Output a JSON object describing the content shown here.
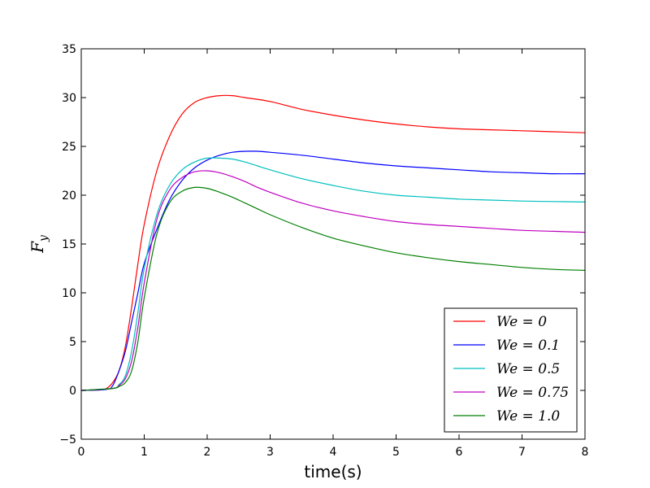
{
  "chart_data": {
    "type": "line",
    "title": "",
    "xlabel": "time(s)",
    "ylabel": "F_y",
    "ylabel_main": "F",
    "ylabel_sub": "y",
    "xlim": [
      0,
      8
    ],
    "ylim": [
      -5,
      35
    ],
    "xticks": [
      0,
      1,
      2,
      3,
      4,
      5,
      6,
      7,
      8
    ],
    "xtick_labels": [
      "0",
      "1",
      "2",
      "3",
      "4",
      "5",
      "6",
      "7",
      "8"
    ],
    "yticks": [
      -5,
      0,
      5,
      10,
      15,
      20,
      25,
      30,
      35
    ],
    "ytick_labels": [
      "−5",
      "0",
      "5",
      "10",
      "15",
      "20",
      "25",
      "30",
      "35"
    ],
    "grid": false,
    "legend_position": "bottom-right",
    "series": [
      {
        "name": "We = 0",
        "color": "#ff0000",
        "x": [
          0,
          0.3,
          0.4,
          0.5,
          0.6,
          0.7,
          0.8,
          0.9,
          1.0,
          1.2,
          1.4,
          1.6,
          1.8,
          2.0,
          2.2,
          2.4,
          2.6,
          3.0,
          3.5,
          4.0,
          4.5,
          5.0,
          5.5,
          6.0,
          6.5,
          7.0,
          7.5,
          8.0
        ],
        "y": [
          0,
          0.05,
          0.2,
          0.8,
          2.0,
          4.5,
          8.5,
          13.0,
          17.0,
          22.5,
          26.0,
          28.3,
          29.5,
          30.0,
          30.2,
          30.2,
          30.0,
          29.6,
          28.8,
          28.2,
          27.7,
          27.3,
          27.0,
          26.8,
          26.7,
          26.6,
          26.5,
          26.4
        ]
      },
      {
        "name": "We = 0.1",
        "color": "#0000ff",
        "x": [
          0,
          0.4,
          0.5,
          0.6,
          0.7,
          0.8,
          0.9,
          1.0,
          1.2,
          1.4,
          1.6,
          1.8,
          2.0,
          2.2,
          2.4,
          2.6,
          2.8,
          3.0,
          3.5,
          4.0,
          4.5,
          5.0,
          5.5,
          6.0,
          6.5,
          7.0,
          7.5,
          8.0
        ],
        "y": [
          0,
          0.1,
          0.5,
          2.0,
          4.0,
          7.0,
          10.0,
          13.0,
          16.5,
          19.5,
          21.5,
          22.8,
          23.6,
          24.1,
          24.4,
          24.5,
          24.5,
          24.4,
          24.1,
          23.7,
          23.3,
          23.0,
          22.8,
          22.6,
          22.4,
          22.3,
          22.2,
          22.2
        ]
      },
      {
        "name": "We = 0.5",
        "color": "#00bfbf",
        "x": [
          0,
          0.5,
          0.6,
          0.7,
          0.8,
          0.9,
          1.0,
          1.2,
          1.4,
          1.6,
          1.8,
          2.0,
          2.2,
          2.4,
          2.6,
          2.8,
          3.0,
          3.5,
          4.0,
          4.5,
          5.0,
          5.5,
          6.0,
          6.5,
          7.0,
          7.5,
          8.0
        ],
        "y": [
          0,
          0.2,
          0.6,
          1.5,
          4.0,
          8.0,
          12.5,
          18.0,
          21.0,
          22.6,
          23.4,
          23.8,
          23.8,
          23.7,
          23.4,
          23.0,
          22.6,
          21.7,
          21.0,
          20.4,
          20.0,
          19.8,
          19.6,
          19.5,
          19.4,
          19.35,
          19.3
        ]
      },
      {
        "name": "We = 0.75",
        "color": "#bf00bf",
        "x": [
          0,
          0.5,
          0.6,
          0.7,
          0.8,
          0.9,
          1.0,
          1.2,
          1.4,
          1.6,
          1.8,
          2.0,
          2.2,
          2.4,
          2.6,
          2.8,
          3.0,
          3.5,
          4.0,
          4.5,
          5.0,
          5.5,
          6.0,
          6.5,
          7.0,
          7.5,
          8.0
        ],
        "y": [
          0,
          0.2,
          0.5,
          1.2,
          3.0,
          6.5,
          11.0,
          17.5,
          20.5,
          21.8,
          22.4,
          22.5,
          22.3,
          21.9,
          21.4,
          20.8,
          20.3,
          19.2,
          18.4,
          17.8,
          17.3,
          17.0,
          16.8,
          16.6,
          16.4,
          16.3,
          16.2
        ]
      },
      {
        "name": "We = 1.0",
        "color": "#007f00",
        "x": [
          0,
          0.5,
          0.6,
          0.7,
          0.8,
          0.9,
          1.0,
          1.2,
          1.4,
          1.6,
          1.8,
          2.0,
          2.2,
          2.4,
          2.6,
          2.8,
          3.0,
          3.5,
          4.0,
          4.5,
          5.0,
          5.5,
          6.0,
          6.5,
          7.0,
          7.5,
          8.0
        ],
        "y": [
          0,
          0.2,
          0.4,
          0.8,
          2.0,
          5.0,
          9.5,
          16.0,
          19.2,
          20.4,
          20.8,
          20.7,
          20.3,
          19.8,
          19.2,
          18.6,
          18.0,
          16.7,
          15.6,
          14.8,
          14.1,
          13.6,
          13.2,
          12.9,
          12.6,
          12.4,
          12.3
        ]
      }
    ]
  }
}
